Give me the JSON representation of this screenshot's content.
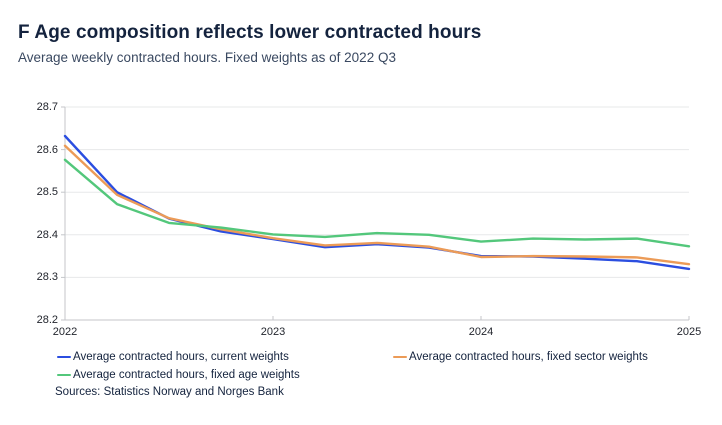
{
  "header": {
    "title": "F Age composition reflects lower contracted hours",
    "subtitle": "Average weekly contracted hours. Fixed weights as of 2022 Q3"
  },
  "colors": {
    "current_weights": "#2b4ee0",
    "fixed_sector_weights": "#ec9b57",
    "fixed_age_weights": "#53c77b",
    "grid": "#e7e8ea",
    "axis": "#c4c6ca",
    "title_text": "#14233e",
    "subtitle_text": "#3a4961",
    "tick_text": "#23262e"
  },
  "chart_data": {
    "type": "line",
    "x": [
      "2022 Q1",
      "2022 Q2",
      "2022 Q3",
      "2022 Q4",
      "2023 Q1",
      "2023 Q2",
      "2023 Q3",
      "2023 Q4",
      "2024 Q1",
      "2024 Q2",
      "2024 Q3",
      "2024 Q4",
      "2025 Q1"
    ],
    "series": [
      {
        "name": "Average contracted hours, current weights",
        "color_key": "current_weights",
        "values": [
          28.632,
          28.5,
          28.438,
          28.408,
          28.39,
          28.371,
          28.378,
          28.37,
          28.35,
          28.349,
          28.344,
          28.338,
          28.32
        ]
      },
      {
        "name": "Average contracted hours, fixed sector weights",
        "color_key": "fixed_sector_weights",
        "values": [
          28.609,
          28.494,
          28.439,
          28.413,
          28.392,
          28.375,
          28.381,
          28.372,
          28.348,
          28.35,
          28.349,
          28.347,
          28.331
        ]
      },
      {
        "name": "Average contracted hours, fixed age weights",
        "color_key": "fixed_age_weights",
        "values": [
          28.576,
          28.472,
          28.428,
          28.417,
          28.401,
          28.395,
          28.404,
          28.4,
          28.384,
          28.391,
          28.389,
          28.391,
          28.373
        ]
      }
    ],
    "title": "F Age composition reflects lower contracted hours",
    "subtitle": "Average weekly contracted hours. Fixed weights as of 2022 Q3",
    "xlabel": "",
    "ylabel": "",
    "ylim": [
      28.2,
      28.7
    ],
    "yticks": [
      28.2,
      28.3,
      28.4,
      28.5,
      28.6,
      28.7
    ],
    "ytick_labels": [
      "28.2",
      "28.3",
      "28.4",
      "28.5",
      "28.6",
      "28.7"
    ],
    "xtick_positions": [
      0,
      4,
      8,
      12
    ],
    "xtick_labels": [
      "2022",
      "2023",
      "2024",
      "2025"
    ],
    "grid": "horizontal",
    "legend_position": "bottom"
  },
  "legend": {
    "items": [
      {
        "label": "Average contracted hours, current weights",
        "color_key": "current_weights"
      },
      {
        "label": "Average contracted hours, fixed sector weights",
        "color_key": "fixed_sector_weights"
      },
      {
        "label": "Average contracted hours, fixed age weights",
        "color_key": "fixed_age_weights"
      }
    ]
  },
  "source": "Sources: Statistics Norway and Norges Bank"
}
